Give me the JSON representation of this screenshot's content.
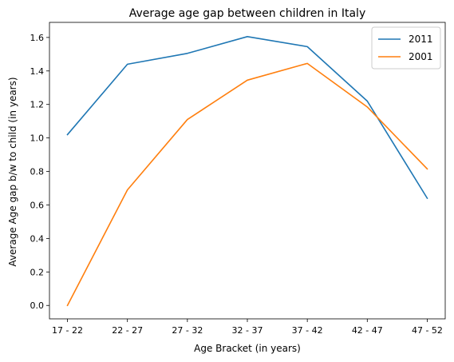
{
  "chart_data": {
    "type": "line",
    "title": "Average age gap between children in Italy",
    "xlabel": "Age Bracket (in years)",
    "ylabel": "Average Age gap b/w to child (in years)",
    "categories": [
      "17 - 22",
      "22 - 27",
      "27 - 32",
      "32 - 37",
      "37 - 42",
      "42 - 47",
      "47 - 52"
    ],
    "ylim": [
      -0.08,
      1.69
    ],
    "yticks": [
      0.0,
      0.2,
      0.4,
      0.6,
      0.8,
      1.0,
      1.2,
      1.4,
      1.6
    ],
    "ytick_labels": [
      "0.0",
      "0.2",
      "0.4",
      "0.6",
      "0.8",
      "1.0",
      "1.2",
      "1.4",
      "1.6"
    ],
    "grid": false,
    "legend_position": "top-right",
    "series": [
      {
        "name": "2011",
        "color": "#1f77b4",
        "values": [
          1.02,
          1.44,
          1.505,
          1.605,
          1.545,
          1.22,
          0.64
        ]
      },
      {
        "name": "2001",
        "color": "#ff7f0e",
        "values": [
          0.0,
          0.69,
          1.11,
          1.345,
          1.445,
          1.185,
          0.815
        ]
      }
    ]
  }
}
